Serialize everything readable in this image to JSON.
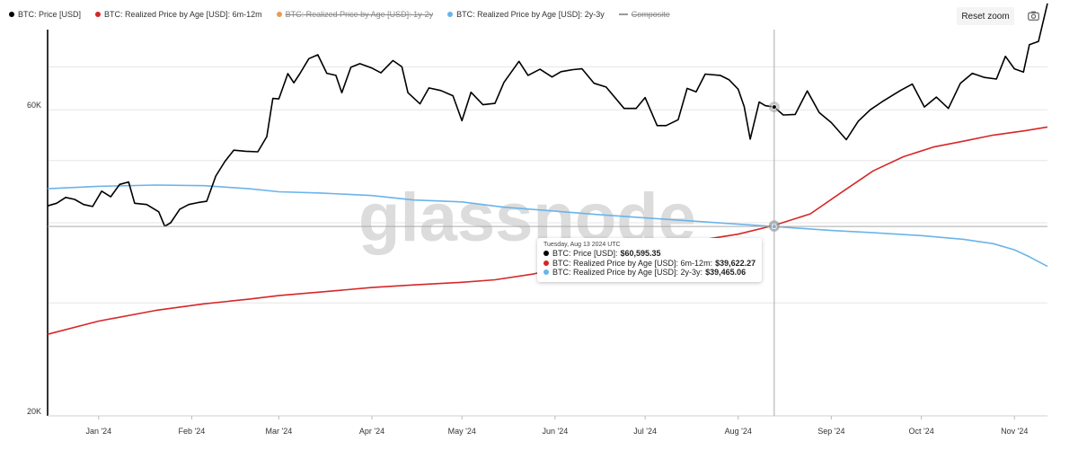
{
  "legend": [
    {
      "label": "BTC: Price [USD]",
      "color": "#000000",
      "style": "dot",
      "hidden": false
    },
    {
      "label": "BTC: Realized Price by Age [USD]: 6m-12m",
      "color": "#d62728",
      "style": "dot",
      "hidden": false
    },
    {
      "label": "BTC: Realized Price by Age [USD]: 1y-2y",
      "color": "#e89b55",
      "style": "dot",
      "hidden": true
    },
    {
      "label": "BTC: Realized Price by Age [USD]: 2y-3y",
      "color": "#6ab4ea",
      "style": "dot",
      "hidden": false
    },
    {
      "label": "Composite",
      "color": "#999999",
      "style": "line",
      "hidden": true
    }
  ],
  "toolbar": {
    "reset_zoom": "Reset zoom",
    "camera_icon": "camera-icon"
  },
  "watermark": "glassnode",
  "tooltip": {
    "date": "Tuesday, Aug 13 2024 UTC",
    "rows": [
      {
        "label": "BTC: Price [USD]:",
        "value": "$60,595.35",
        "color": "#000000"
      },
      {
        "label": "BTC: Realized Price by Age [USD]: 6m-12m:",
        "value": "$39,622.27",
        "color": "#d62728"
      },
      {
        "label": "BTC: Realized Price by Age [USD]: 2y-3y:",
        "value": "$39,465.06",
        "color": "#6ab4ea"
      }
    ]
  },
  "chart_data": {
    "type": "line",
    "y_scale": "log",
    "y_ticks": [
      {
        "value": 20000,
        "label": "20K"
      },
      {
        "value": 60000,
        "label": "60K"
      }
    ],
    "ylim": [
      20000,
      80000
    ],
    "x_range": [
      "2023-12-15",
      "2024-11-12"
    ],
    "x_ticks": [
      {
        "date": "2024-01-01",
        "label": "Jan '24"
      },
      {
        "date": "2024-02-01",
        "label": "Feb '24"
      },
      {
        "date": "2024-03-01",
        "label": "Mar '24"
      },
      {
        "date": "2024-04-01",
        "label": "Apr '24"
      },
      {
        "date": "2024-05-01",
        "label": "May '24"
      },
      {
        "date": "2024-06-01",
        "label": "Jun '24"
      },
      {
        "date": "2024-07-01",
        "label": "Jul '24"
      },
      {
        "date": "2024-08-01",
        "label": "Aug '24"
      },
      {
        "date": "2024-09-01",
        "label": "Sep '24"
      },
      {
        "date": "2024-10-01",
        "label": "Oct '24"
      },
      {
        "date": "2024-11-01",
        "label": "Nov '24"
      }
    ],
    "crosshair_date": "2024-08-13",
    "series": [
      {
        "name": "BTC: Price [USD]",
        "color": "#000000",
        "width": 1.6,
        "points": [
          [
            "2023-12-15",
            42500
          ],
          [
            "2023-12-18",
            42900
          ],
          [
            "2023-12-21",
            43800
          ],
          [
            "2023-12-24",
            43500
          ],
          [
            "2023-12-27",
            42700
          ],
          [
            "2023-12-30",
            42400
          ],
          [
            "2024-01-02",
            44800
          ],
          [
            "2024-01-05",
            43900
          ],
          [
            "2024-01-08",
            45900
          ],
          [
            "2024-01-11",
            46300
          ],
          [
            "2024-01-13",
            42900
          ],
          [
            "2024-01-17",
            42700
          ],
          [
            "2024-01-21",
            41600
          ],
          [
            "2024-01-23",
            39500
          ],
          [
            "2024-01-25",
            40000
          ],
          [
            "2024-01-28",
            42000
          ],
          [
            "2024-01-31",
            42700
          ],
          [
            "2024-02-03",
            43000
          ],
          [
            "2024-02-06",
            43200
          ],
          [
            "2024-02-09",
            47300
          ],
          [
            "2024-02-12",
            49800
          ],
          [
            "2024-02-15",
            51900
          ],
          [
            "2024-02-19",
            51700
          ],
          [
            "2024-02-23",
            51600
          ],
          [
            "2024-02-26",
            54500
          ],
          [
            "2024-02-28",
            62500
          ],
          [
            "2024-03-01",
            62400
          ],
          [
            "2024-03-04",
            68300
          ],
          [
            "2024-03-06",
            66100
          ],
          [
            "2024-03-08",
            68300
          ],
          [
            "2024-03-11",
            72100
          ],
          [
            "2024-03-14",
            73100
          ],
          [
            "2024-03-17",
            68400
          ],
          [
            "2024-03-20",
            67900
          ],
          [
            "2024-03-22",
            63800
          ],
          [
            "2024-03-25",
            69900
          ],
          [
            "2024-03-28",
            70800
          ],
          [
            "2024-04-01",
            69700
          ],
          [
            "2024-04-04",
            68500
          ],
          [
            "2024-04-08",
            71600
          ],
          [
            "2024-04-11",
            70000
          ],
          [
            "2024-04-13",
            63800
          ],
          [
            "2024-04-17",
            61300
          ],
          [
            "2024-04-20",
            64900
          ],
          [
            "2024-04-24",
            64300
          ],
          [
            "2024-04-28",
            63100
          ],
          [
            "2024-05-01",
            57700
          ],
          [
            "2024-05-04",
            63900
          ],
          [
            "2024-05-08",
            61100
          ],
          [
            "2024-05-12",
            61400
          ],
          [
            "2024-05-15",
            66200
          ],
          [
            "2024-05-20",
            71400
          ],
          [
            "2024-05-23",
            67900
          ],
          [
            "2024-05-27",
            69400
          ],
          [
            "2024-05-31",
            67500
          ],
          [
            "2024-06-03",
            68800
          ],
          [
            "2024-06-07",
            69300
          ],
          [
            "2024-06-10",
            69500
          ],
          [
            "2024-06-14",
            66000
          ],
          [
            "2024-06-18",
            65100
          ],
          [
            "2024-06-24",
            60300
          ],
          [
            "2024-06-28",
            60300
          ],
          [
            "2024-07-01",
            62700
          ],
          [
            "2024-07-05",
            56700
          ],
          [
            "2024-07-08",
            56700
          ],
          [
            "2024-07-12",
            57900
          ],
          [
            "2024-07-15",
            64800
          ],
          [
            "2024-07-18",
            64000
          ],
          [
            "2024-07-21",
            68200
          ],
          [
            "2024-07-26",
            67900
          ],
          [
            "2024-07-29",
            66800
          ],
          [
            "2024-08-01",
            64600
          ],
          [
            "2024-08-03",
            60700
          ],
          [
            "2024-08-05",
            54000
          ],
          [
            "2024-08-08",
            61700
          ],
          [
            "2024-08-10",
            60900
          ],
          [
            "2024-08-13",
            60595
          ],
          [
            "2024-08-16",
            58900
          ],
          [
            "2024-08-20",
            59000
          ],
          [
            "2024-08-24",
            64200
          ],
          [
            "2024-08-28",
            59400
          ],
          [
            "2024-09-01",
            57300
          ],
          [
            "2024-09-06",
            53900
          ],
          [
            "2024-09-10",
            57600
          ],
          [
            "2024-09-14",
            60000
          ],
          [
            "2024-09-18",
            61800
          ],
          [
            "2024-09-24",
            64300
          ],
          [
            "2024-09-28",
            65800
          ],
          [
            "2024-10-02",
            60600
          ],
          [
            "2024-10-06",
            62800
          ],
          [
            "2024-10-10",
            60300
          ],
          [
            "2024-10-14",
            66000
          ],
          [
            "2024-10-18",
            68400
          ],
          [
            "2024-10-22",
            67400
          ],
          [
            "2024-10-26",
            67000
          ],
          [
            "2024-10-29",
            72700
          ],
          [
            "2024-11-01",
            69500
          ],
          [
            "2024-11-04",
            68700
          ],
          [
            "2024-11-06",
            75800
          ],
          [
            "2024-11-09",
            76700
          ],
          [
            "2024-11-12",
            87900
          ]
        ]
      },
      {
        "name": "BTC: Realized Price by Age [USD]: 6m-12m",
        "color": "#d62728",
        "width": 1.6,
        "points": [
          [
            "2023-12-15",
            26800
          ],
          [
            "2024-01-01",
            28100
          ],
          [
            "2024-01-20",
            29200
          ],
          [
            "2024-02-05",
            29900
          ],
          [
            "2024-02-20",
            30400
          ],
          [
            "2024-03-01",
            30800
          ],
          [
            "2024-03-15",
            31200
          ],
          [
            "2024-04-01",
            31700
          ],
          [
            "2024-04-15",
            32000
          ],
          [
            "2024-05-01",
            32300
          ],
          [
            "2024-05-12",
            32600
          ],
          [
            "2024-05-25",
            33300
          ],
          [
            "2024-06-01",
            33900
          ],
          [
            "2024-06-15",
            35000
          ],
          [
            "2024-07-01",
            36200
          ],
          [
            "2024-07-15",
            37300
          ],
          [
            "2024-08-01",
            38400
          ],
          [
            "2024-08-13",
            39622
          ],
          [
            "2024-08-25",
            41300
          ],
          [
            "2024-09-05",
            44800
          ],
          [
            "2024-09-15",
            48200
          ],
          [
            "2024-09-25",
            50700
          ],
          [
            "2024-10-05",
            52500
          ],
          [
            "2024-10-15",
            53600
          ],
          [
            "2024-10-25",
            54800
          ],
          [
            "2024-11-05",
            55700
          ],
          [
            "2024-11-12",
            56400
          ]
        ]
      },
      {
        "name": "BTC: Realized Price by Age [USD]: 2y-3y",
        "color": "#6ab4ea",
        "width": 1.6,
        "points": [
          [
            "2023-12-15",
            45200
          ],
          [
            "2024-01-01",
            45600
          ],
          [
            "2024-01-20",
            45800
          ],
          [
            "2024-02-05",
            45700
          ],
          [
            "2024-02-20",
            45200
          ],
          [
            "2024-03-01",
            44700
          ],
          [
            "2024-03-15",
            44500
          ],
          [
            "2024-04-01",
            44100
          ],
          [
            "2024-04-15",
            43400
          ],
          [
            "2024-05-01",
            43100
          ],
          [
            "2024-05-15",
            42300
          ],
          [
            "2024-06-01",
            41700
          ],
          [
            "2024-06-15",
            41200
          ],
          [
            "2024-07-01",
            40700
          ],
          [
            "2024-07-15",
            40300
          ],
          [
            "2024-08-01",
            39800
          ],
          [
            "2024-08-13",
            39465
          ],
          [
            "2024-09-01",
            38900
          ],
          [
            "2024-09-15",
            38600
          ],
          [
            "2024-10-01",
            38200
          ],
          [
            "2024-10-15",
            37700
          ],
          [
            "2024-10-25",
            37100
          ],
          [
            "2024-11-01",
            36300
          ],
          [
            "2024-11-06",
            35400
          ],
          [
            "2024-11-12",
            34200
          ]
        ]
      }
    ]
  }
}
